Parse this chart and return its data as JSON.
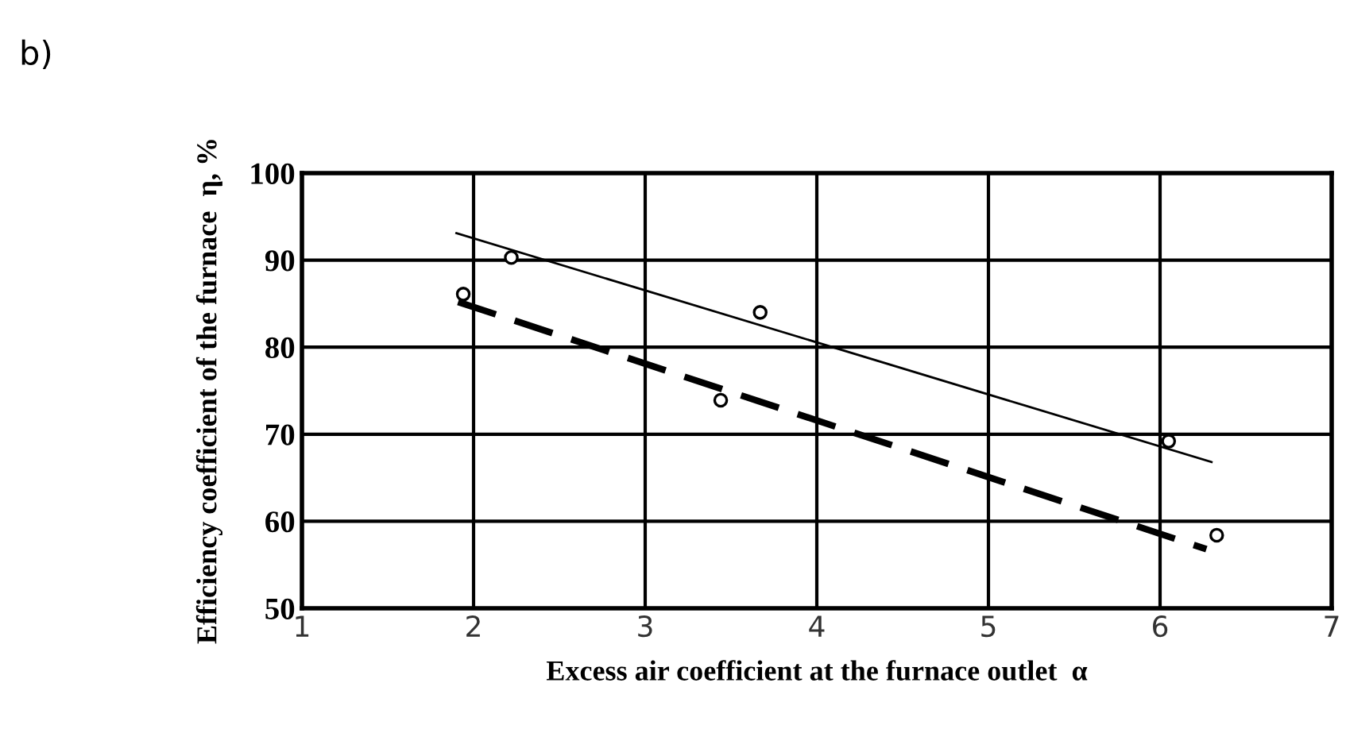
{
  "chart_data": {
    "type": "scatter",
    "xlabel": "Excess air coefficient at the furnace outlet  α",
    "ylabel": "Efficiency coefficient of the furnace  η, %",
    "annotations": [
      "b)"
    ],
    "xlim": [
      1,
      7
    ],
    "xticks": [
      1,
      2,
      3,
      4,
      5,
      6,
      7
    ],
    "ylim": [
      50,
      100
    ],
    "yticks": [
      50,
      60,
      70,
      80,
      90,
      100
    ],
    "grid": true,
    "marker": "circle",
    "series": [
      {
        "type": "line",
        "color": "#000000",
        "line_style": "solid",
        "marker": "none",
        "x": [
          1.9,
          6.3
        ],
        "values": [
          93.1,
          66.8
        ]
      },
      {
        "type": "line",
        "color": "#000000",
        "line_style": "dashed",
        "marker": "none",
        "x": [
          1.91,
          6.27
        ],
        "values": [
          85.2,
          56.8
        ]
      },
      {
        "color": "#000000",
        "x": [
          2.22,
          3.67,
          6.05
        ],
        "values": [
          90.3,
          84.0,
          69.2
        ]
      },
      {
        "color": "#000000",
        "x": [
          1.94,
          3.44,
          6.33
        ],
        "values": [
          86.1,
          73.9,
          58.4
        ]
      }
    ]
  }
}
